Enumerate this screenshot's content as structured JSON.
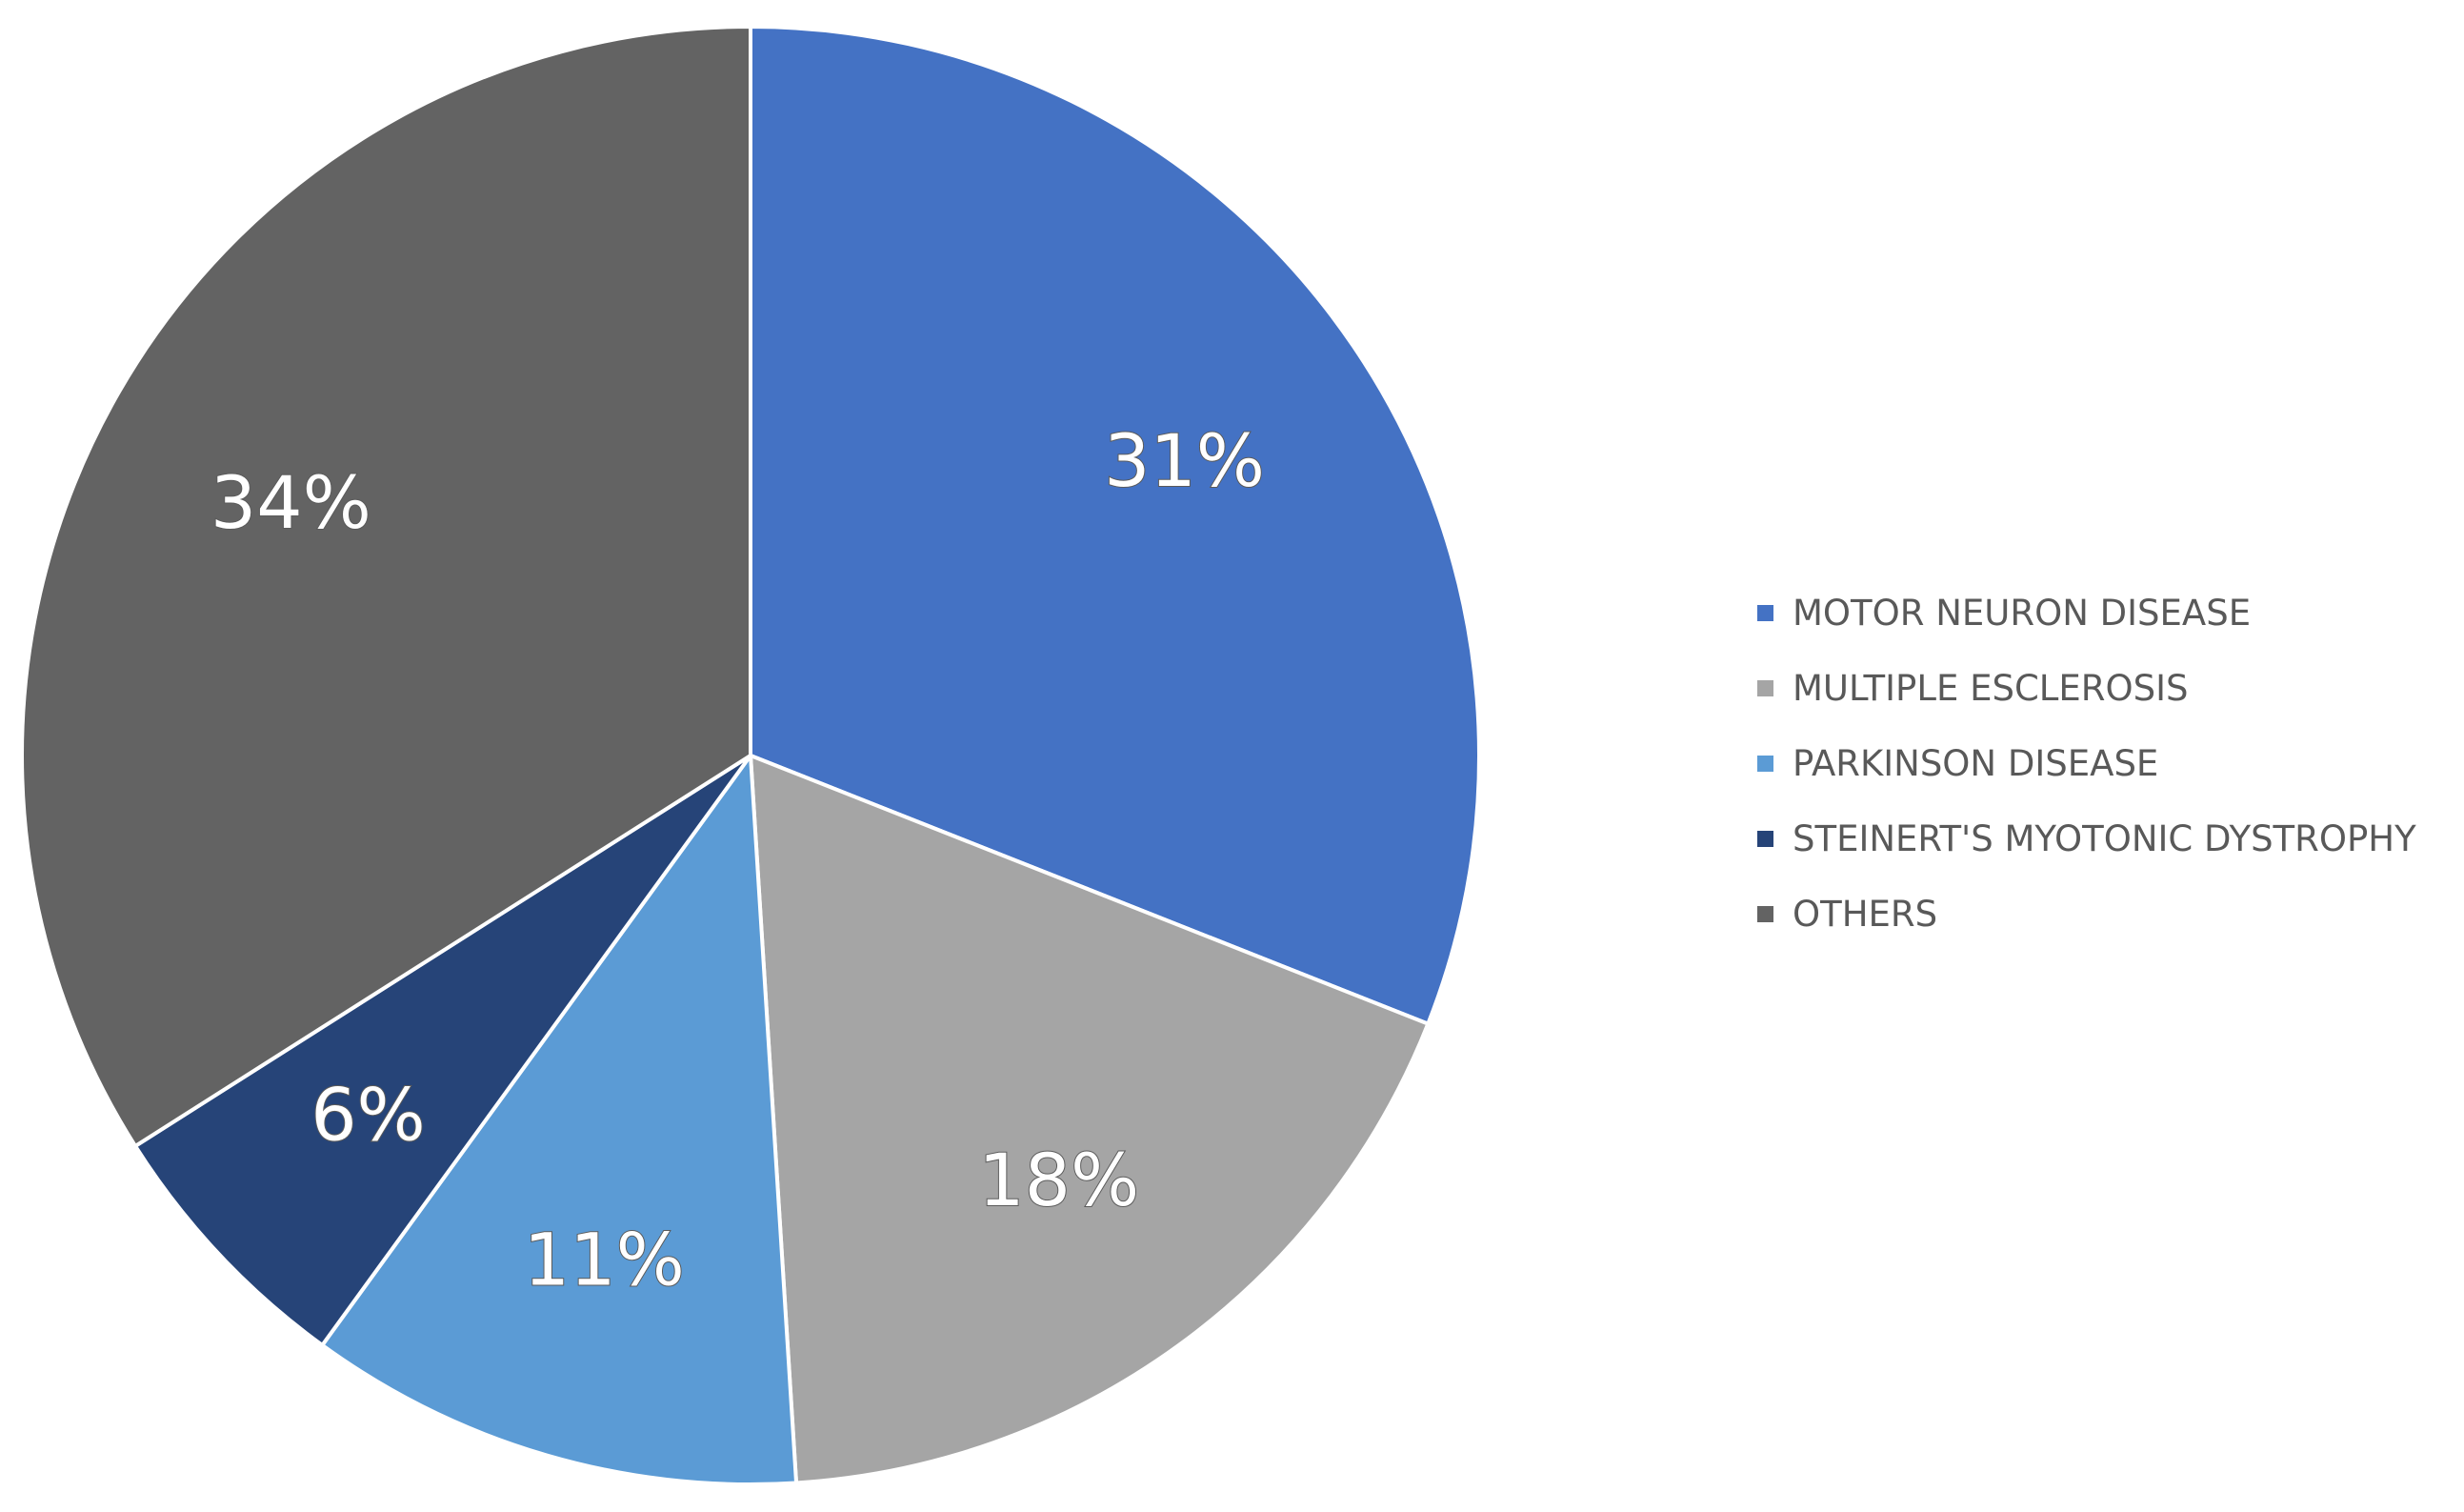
{
  "chart_data": {
    "type": "pie",
    "title": "",
    "legend_position": "right",
    "slices": [
      {
        "label": "MOTOR NEURON DISEASE",
        "value": 31,
        "display": "31%",
        "color": "#4472C4"
      },
      {
        "label": "MULTIPLE ESCLEROSIS",
        "value": 18,
        "display": "18%",
        "color": "#A5A5A5"
      },
      {
        "label": "PARKINSON DISEASE",
        "value": 11,
        "display": "11%",
        "color": "#5B9BD5"
      },
      {
        "label": "STEINERT'S MYOTONIC DYSTROPHY",
        "value": 6,
        "display": "6%",
        "color": "#264478"
      },
      {
        "label": "OTHERS",
        "value": 34,
        "display": "34%",
        "color": "#636363"
      }
    ]
  }
}
